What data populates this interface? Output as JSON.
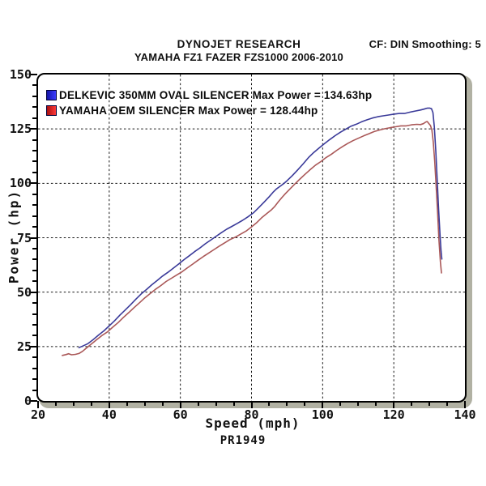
{
  "header": {
    "line1": "DYNOJET RESEARCH",
    "line2": "YAMAHA FZ1 FAZER FZS1000 2006-2010",
    "right": "CF: DIN  Smoothing: 5"
  },
  "footer": {
    "run_id": "PR1949"
  },
  "colors": {
    "plot_border": "#000000",
    "plot_shadow": "#b1b1a3",
    "grid": "#161616",
    "background": "#ffffff"
  },
  "chart_data": {
    "type": "line",
    "title": "",
    "xlabel": "Speed (mph)",
    "ylabel": "Power (hp)",
    "xlim": [
      20,
      140
    ],
    "ylim": [
      0,
      150
    ],
    "x_major_ticks": [
      20,
      40,
      60,
      80,
      100,
      120,
      140
    ],
    "y_major_ticks": [
      0,
      25,
      50,
      75,
      100,
      125,
      150
    ],
    "x_minor_step": 5,
    "y_minor_step": 5,
    "grid": "dashed-major",
    "legend_position": "top-left",
    "series": [
      {
        "name": "DELKEVIC 350MM OVAL SILENCER",
        "legend_label": "DELKEVIC 350MM OVAL SILENCER Max Power = 134.63hp",
        "max_power_hp": 134.63,
        "line_color": "#3a3a99",
        "swatch_fill_left": "#1515a8",
        "swatch_fill_right": "#3b3bff",
        "points": [
          [
            31.5,
            24.5
          ],
          [
            32.5,
            25.2
          ],
          [
            34,
            26.3
          ],
          [
            35.5,
            28.2
          ],
          [
            37,
            30.3
          ],
          [
            38.5,
            32.2
          ],
          [
            40,
            34.5
          ],
          [
            41.5,
            36.8
          ],
          [
            43,
            39.4
          ],
          [
            44.5,
            41.8
          ],
          [
            46,
            44.2
          ],
          [
            47.5,
            46.8
          ],
          [
            49,
            49.2
          ],
          [
            50.5,
            51.2
          ],
          [
            52,
            53.4
          ],
          [
            53.5,
            55.4
          ],
          [
            55,
            57.4
          ],
          [
            56.5,
            59.1
          ],
          [
            58,
            61.0
          ],
          [
            59.5,
            62.9
          ],
          [
            61,
            64.9
          ],
          [
            62.5,
            66.7
          ],
          [
            64,
            68.6
          ],
          [
            65.5,
            70.3
          ],
          [
            67,
            72.2
          ],
          [
            68.5,
            73.9
          ],
          [
            70,
            75.6
          ],
          [
            71.5,
            77.3
          ],
          [
            73,
            78.9
          ],
          [
            74.5,
            80.2
          ],
          [
            76,
            81.6
          ],
          [
            77.5,
            83.0
          ],
          [
            79,
            84.6
          ],
          [
            80.5,
            86.4
          ],
          [
            82,
            88.8
          ],
          [
            83.5,
            91.3
          ],
          [
            85,
            93.9
          ],
          [
            86,
            95.8
          ],
          [
            87,
            97.4
          ],
          [
            88,
            98.6
          ],
          [
            89,
            99.8
          ],
          [
            90,
            101.2
          ],
          [
            91.5,
            103.6
          ],
          [
            93,
            106.2
          ],
          [
            94.5,
            108.9
          ],
          [
            96,
            111.8
          ],
          [
            97.5,
            114.2
          ],
          [
            99,
            116.2
          ],
          [
            100.5,
            118.2
          ],
          [
            102,
            120.1
          ],
          [
            103.5,
            121.9
          ],
          [
            105,
            123.5
          ],
          [
            106.5,
            124.9
          ],
          [
            108,
            126.3
          ],
          [
            109.5,
            127.2
          ],
          [
            111,
            128.3
          ],
          [
            112.5,
            129.2
          ],
          [
            114,
            130.0
          ],
          [
            115.5,
            130.6
          ],
          [
            117,
            131.0
          ],
          [
            118.5,
            131.4
          ],
          [
            120,
            131.8
          ],
          [
            121.5,
            132.1
          ],
          [
            123,
            132.1
          ],
          [
            124.5,
            132.7
          ],
          [
            126,
            133.2
          ],
          [
            127.5,
            133.7
          ],
          [
            128.5,
            134.1
          ],
          [
            129.3,
            134.5
          ],
          [
            130,
            134.6
          ],
          [
            130.6,
            134.3
          ],
          [
            131,
            132.5
          ],
          [
            131.4,
            126
          ],
          [
            131.8,
            115
          ],
          [
            132.2,
            102
          ],
          [
            132.6,
            88
          ],
          [
            133,
            76
          ],
          [
            133.3,
            68.5
          ],
          [
            133.5,
            65.2
          ]
        ]
      },
      {
        "name": "YAMAHA OEM SILENCER",
        "legend_label": "YAMAHA OEM SILENCER Max Power = 128.44hp",
        "max_power_hp": 128.44,
        "line_color": "#aa5858",
        "swatch_fill_left": "#a80f0f",
        "swatch_fill_right": "#ff3b3b",
        "points": [
          [
            26.8,
            20.9
          ],
          [
            27.8,
            21.3
          ],
          [
            28.6,
            21.7
          ],
          [
            29.4,
            21.2
          ],
          [
            30.5,
            21.4
          ],
          [
            31.5,
            21.8
          ],
          [
            32.5,
            22.8
          ],
          [
            33.5,
            24.2
          ],
          [
            35,
            26.2
          ],
          [
            36.5,
            28.2
          ],
          [
            38,
            30.1
          ],
          [
            39.5,
            31.7
          ],
          [
            41,
            33.9
          ],
          [
            42.5,
            36.0
          ],
          [
            44,
            38.4
          ],
          [
            45.5,
            40.6
          ],
          [
            47,
            42.9
          ],
          [
            48.5,
            45.1
          ],
          [
            50,
            47.4
          ],
          [
            51.5,
            49.3
          ],
          [
            53,
            51.3
          ],
          [
            54.5,
            53.0
          ],
          [
            56,
            54.9
          ],
          [
            57.5,
            56.4
          ],
          [
            59,
            57.9
          ],
          [
            60.5,
            59.4
          ],
          [
            62,
            61.2
          ],
          [
            63.5,
            62.9
          ],
          [
            65,
            64.7
          ],
          [
            66.5,
            66.4
          ],
          [
            68,
            68.0
          ],
          [
            69.5,
            69.6
          ],
          [
            71,
            71.2
          ],
          [
            72.5,
            72.7
          ],
          [
            74,
            74.2
          ],
          [
            75.5,
            75.3
          ],
          [
            77,
            76.7
          ],
          [
            78.5,
            78.1
          ],
          [
            80,
            80.0
          ],
          [
            81.5,
            82.0
          ],
          [
            83,
            84.4
          ],
          [
            84.5,
            86.4
          ],
          [
            85.5,
            87.7
          ],
          [
            86.5,
            89.3
          ],
          [
            87.5,
            91.4
          ],
          [
            88.5,
            93.4
          ],
          [
            89.5,
            95.2
          ],
          [
            90.5,
            96.9
          ],
          [
            92,
            99.4
          ],
          [
            93.5,
            101.8
          ],
          [
            95,
            104.1
          ],
          [
            96.5,
            106.3
          ],
          [
            98,
            108.4
          ],
          [
            99.5,
            110.0
          ],
          [
            101,
            111.9
          ],
          [
            102.5,
            113.4
          ],
          [
            104,
            115.2
          ],
          [
            105.5,
            116.8
          ],
          [
            107,
            118.3
          ],
          [
            108.5,
            119.6
          ],
          [
            110,
            120.7
          ],
          [
            111.5,
            121.8
          ],
          [
            113,
            122.8
          ],
          [
            114.5,
            123.8
          ],
          [
            116,
            124.5
          ],
          [
            117.5,
            125.1
          ],
          [
            119,
            125.6
          ],
          [
            120.5,
            126.0
          ],
          [
            122,
            126.4
          ],
          [
            123.5,
            126.4
          ],
          [
            125,
            126.9
          ],
          [
            126.5,
            127.1
          ],
          [
            127.5,
            127.0
          ],
          [
            128.3,
            127.4
          ],
          [
            129,
            128.2
          ],
          [
            129.4,
            128.4
          ],
          [
            129.8,
            127.6
          ],
          [
            130.3,
            126.6
          ],
          [
            130.7,
            124.5
          ],
          [
            131.1,
            119
          ],
          [
            131.5,
            110
          ],
          [
            131.9,
            99
          ],
          [
            132.3,
            87
          ],
          [
            132.7,
            74
          ],
          [
            133.1,
            64
          ],
          [
            133.4,
            58.8
          ]
        ]
      }
    ]
  }
}
